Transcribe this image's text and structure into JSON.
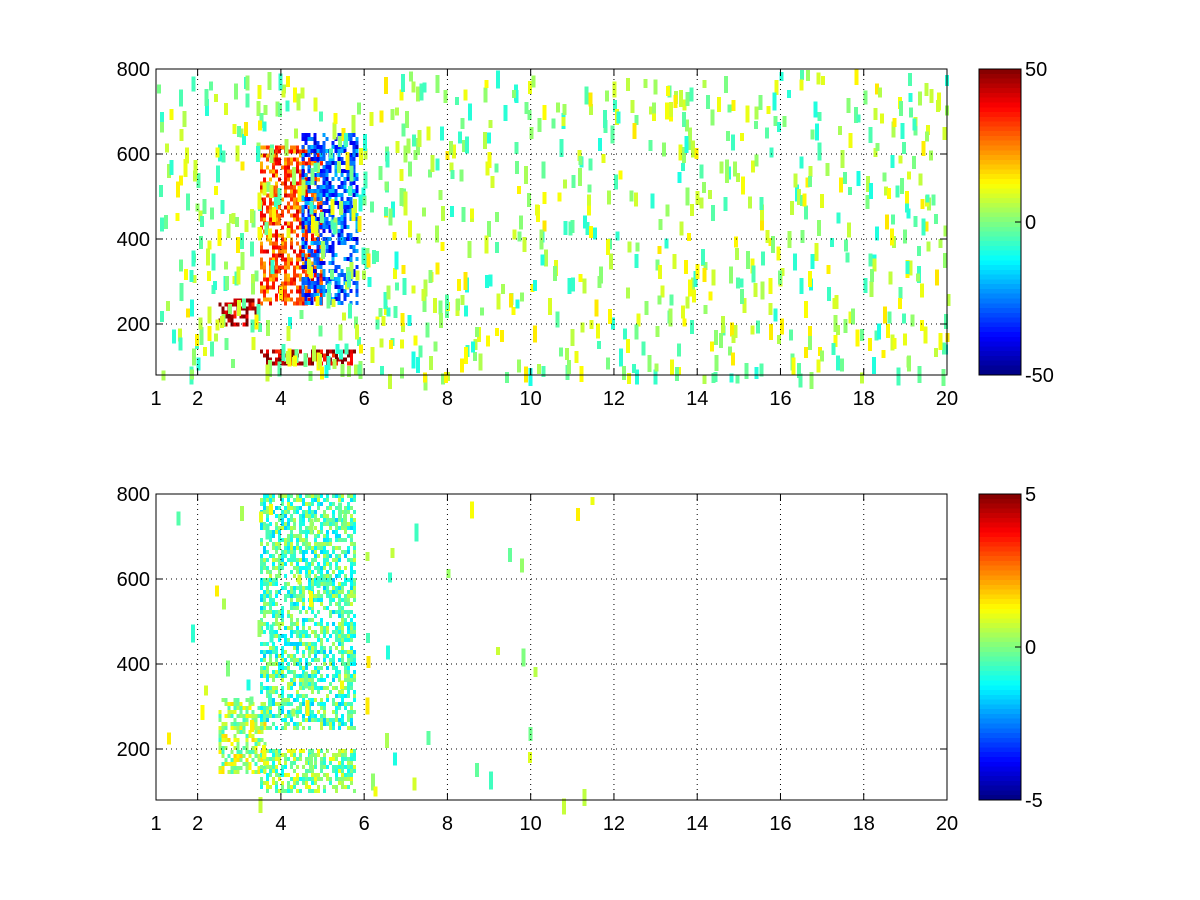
{
  "chart_data": [
    {
      "type": "heatmap",
      "title": "",
      "xlabel": "",
      "ylabel": "",
      "xlim": [
        1,
        20
      ],
      "ylim": [
        80,
        800
      ],
      "x_ticks": [
        1,
        2,
        4,
        6,
        8,
        10,
        12,
        14,
        16,
        18,
        20
      ],
      "x_tick_labels": [
        "1",
        "2",
        "4",
        "6",
        "8",
        "10",
        "12",
        "14",
        "16",
        "18",
        "20"
      ],
      "y_ticks": [
        200,
        400,
        600,
        800
      ],
      "y_tick_labels": [
        "200",
        "400",
        "600",
        "800"
      ],
      "grid": true,
      "colormap": "jet",
      "colorbar": {
        "min": -50,
        "max": 50,
        "ticks": [
          50,
          0,
          -50
        ],
        "tick_labels": [
          "50",
          "0",
          "-50"
        ]
      },
      "features": [
        {
          "x": [
            2.5,
            3.5
          ],
          "y": [
            200,
            260
          ],
          "value": 45
        },
        {
          "x": [
            3.5,
            5.0
          ],
          "y": [
            250,
            620
          ],
          "value": 30
        },
        {
          "x": [
            4.5,
            5.8
          ],
          "y": [
            250,
            650
          ],
          "value": -30
        },
        {
          "x": [
            3.5,
            5.8
          ],
          "y": [
            110,
            140
          ],
          "value": 45
        }
      ]
    },
    {
      "type": "heatmap",
      "title": "",
      "xlabel": "",
      "ylabel": "",
      "xlim": [
        1,
        20
      ],
      "ylim": [
        80,
        800
      ],
      "x_ticks": [
        1,
        2,
        4,
        6,
        8,
        10,
        12,
        14,
        16,
        18,
        20
      ],
      "x_tick_labels": [
        "1",
        "2",
        "4",
        "6",
        "8",
        "10",
        "12",
        "14",
        "16",
        "18",
        "20"
      ],
      "y_ticks": [
        200,
        400,
        600,
        800
      ],
      "y_tick_labels": [
        "200",
        "400",
        "600",
        "800"
      ],
      "grid": true,
      "colormap": "jet",
      "colorbar": {
        "min": -5,
        "max": 5,
        "ticks": [
          5,
          0,
          -5
        ],
        "tick_labels": [
          "5",
          "0",
          "-5"
        ]
      },
      "features": [
        {
          "x": [
            2.5,
            3.6
          ],
          "y": [
            150,
            320
          ],
          "value": 0.5
        },
        {
          "x": [
            3.5,
            5.8
          ],
          "y": [
            250,
            800
          ],
          "value": -0.5
        },
        {
          "x": [
            3.5,
            5.8
          ],
          "y": [
            100,
            200
          ],
          "value": 0
        }
      ]
    }
  ]
}
